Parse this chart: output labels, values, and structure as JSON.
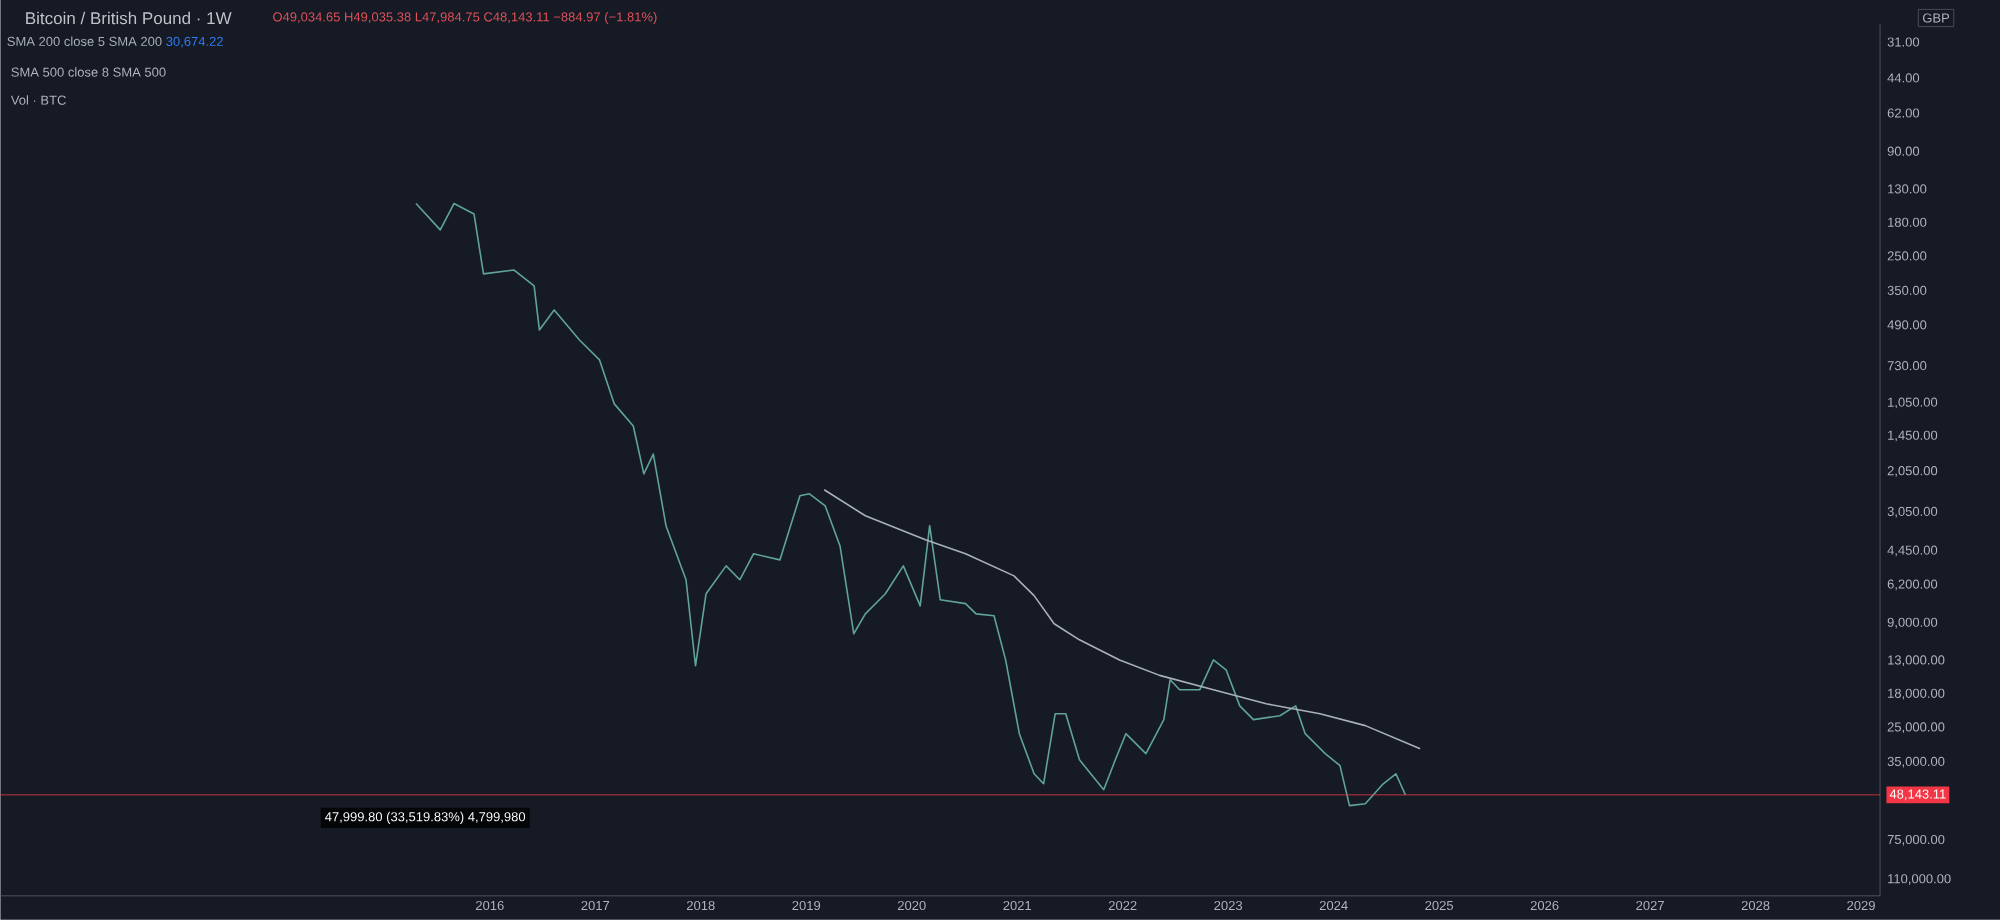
{
  "chart_data": {
    "type": "line",
    "title": "Bitcoin / British Pound · 1W",
    "subtitle": "O49,034.65 H49,035.38 L47,984.75 C48,143.11 −884.97 (−1.81%)",
    "annotations": [
      "SMA 500 close 8 SMA 500",
      "Vol · BTC",
      "47,999.80 (33,519.83%) 4,799,980",
      "GBP",
      "30,674.22"
    ],
    "log": "y",
    "xlim": [
      2011.36,
      2029.18
    ],
    "xticks": [
      2016,
      2017,
      2018,
      2019,
      2020,
      2021,
      2022,
      2023,
      2024,
      2025,
      2026,
      2027,
      2028,
      2029
    ],
    "ylim": [
      129000,
      26
    ],
    "yticks": [
      {
        "value": 31,
        "label": "31.00"
      },
      {
        "value": 44,
        "label": "44.00"
      },
      {
        "value": 62,
        "label": "62.00"
      },
      {
        "value": 90,
        "label": "90.00"
      },
      {
        "value": 130,
        "label": "130.00"
      },
      {
        "value": 180,
        "label": "180.00"
      },
      {
        "value": 250,
        "label": "250.00"
      },
      {
        "value": 350,
        "label": "350.00"
      },
      {
        "value": 490,
        "label": "490.00"
      },
      {
        "value": 730,
        "label": "730.00"
      },
      {
        "value": 1050,
        "label": "1,050.00"
      },
      {
        "value": 1450,
        "label": "1,450.00"
      },
      {
        "value": 2050,
        "label": "2,050.00"
      },
      {
        "value": 3050,
        "label": "3,050.00"
      },
      {
        "value": 4450,
        "label": "4,450.00"
      },
      {
        "value": 6200,
        "label": "6,200.00"
      },
      {
        "value": 9000,
        "label": "9,000.00"
      },
      {
        "value": 13000,
        "label": "13,000.00"
      },
      {
        "value": 18000,
        "label": "18,000.00"
      },
      {
        "value": 25000,
        "label": "25,000.00"
      },
      {
        "value": 35000,
        "label": "35,000.00"
      },
      {
        "value": 75000,
        "label": "75,000.00"
      },
      {
        "value": 110000,
        "label": "110,000.00"
      }
    ],
    "ref_lines": [
      {
        "axis": "y",
        "value": 48143.11,
        "label": "48,143.11",
        "color": "#f23645"
      }
    ],
    "series": [
      {
        "color": "#5fa39a",
        "x": [
          2015.3,
          2015.53,
          2015.66,
          2015.85,
          2015.94,
          2016.23,
          2016.42,
          2016.47,
          2016.61,
          2016.85,
          2017.04,
          2017.18,
          2017.36,
          2017.46,
          2017.55,
          2017.67,
          2017.86,
          2017.95,
          2018.05,
          2018.24,
          2018.37,
          2018.5,
          2018.75,
          2018.94,
          2019.03,
          2019.18,
          2019.32,
          2019.45,
          2019.56,
          2019.75,
          2019.92,
          2020.08,
          2020.17,
          2020.27,
          2020.51,
          2020.61,
          2020.78,
          2020.89,
          2021.02,
          2021.16,
          2021.25,
          2021.36,
          2021.46,
          2021.59,
          2021.82,
          2021.93,
          2022.03,
          2022.22,
          2022.39,
          2022.45,
          2022.54,
          2022.73,
          2022.86,
          2022.98,
          2023.11,
          2023.24,
          2023.49,
          2023.64,
          2023.73,
          2023.92,
          2024.06,
          2024.15,
          2024.3,
          2024.47,
          2024.59,
          2024.68
        ],
        "values": [
          150,
          194,
          150,
          166,
          298,
          287,
          335,
          515,
          424,
          568,
          690,
          1060,
          1315,
          2100,
          1730,
          3480,
          5900,
          13660,
          6760,
          5150,
          5900,
          4580,
          4860,
          2600,
          2550,
          2870,
          4240,
          9990,
          8230,
          6760,
          5150,
          7610,
          3480,
          7170,
          7450,
          8230,
          8380,
          12900,
          26500,
          39200,
          43200,
          21800,
          21800,
          34200,
          45800,
          34200,
          26500,
          32200,
          23100,
          15650,
          17270,
          17270,
          12900,
          14200,
          20200,
          23100,
          22250,
          20200,
          26500,
          32200,
          36200,
          53500,
          52500,
          43200,
          39200,
          48143.11
        ]
      },
      {
        "name": "SMA 200 close 5 SMA 200",
        "color": "#aab0bc",
        "x": [
          2019.17,
          2019.56,
          2020.13,
          2020.51,
          2020.97,
          2021.16,
          2021.35,
          2021.59,
          2021.97,
          2022.35,
          2022.86,
          2023.36,
          2023.87,
          2024.3,
          2024.82
        ],
        "values": [
          2450,
          3160,
          3990,
          4580,
          5680,
          6890,
          9060,
          10600,
          12900,
          15000,
          17270,
          19800,
          21800,
          24500,
          30674.22
        ]
      }
    ]
  }
}
